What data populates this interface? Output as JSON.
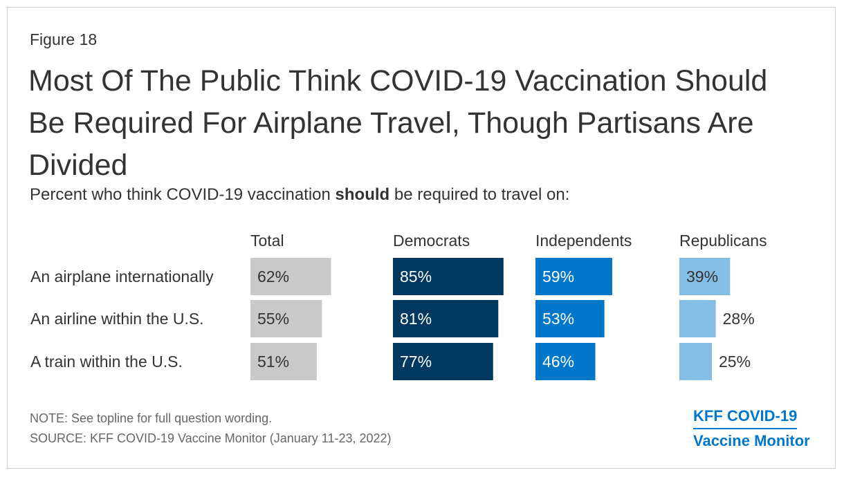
{
  "figure_label": "Figure 18",
  "title": "Most Of The Public Think COVID-19 Vaccination Should Be Required For Airplane Travel, Though Partisans Are Divided",
  "subtitle": {
    "prefix": "Percent who think COVID-19 vaccination ",
    "bold": "should",
    "suffix": " be required to travel on:"
  },
  "chart_data": {
    "type": "bar",
    "orientation": "horizontal",
    "categories": [
      "An airplane internationally",
      "An airline within the U.S.",
      "A train within the U.S."
    ],
    "series": [
      {
        "name": "Total",
        "values": [
          62,
          55,
          51
        ],
        "labels": [
          "62%",
          "55%",
          "51%"
        ],
        "color": "#c9c9c9",
        "label_color": "#333333"
      },
      {
        "name": "Democrats",
        "values": [
          85,
          81,
          77
        ],
        "labels": [
          "85%",
          "81%",
          "77%"
        ],
        "color": "#00385f",
        "label_color": "#ffffff"
      },
      {
        "name": "Independents",
        "values": [
          59,
          53,
          46
        ],
        "labels": [
          "59%",
          "53%",
          "46%"
        ],
        "color": "#0077c8",
        "label_color": "#ffffff"
      },
      {
        "name": "Republicans",
        "values": [
          39,
          28,
          25
        ],
        "labels": [
          "39%",
          "28%",
          "25%"
        ],
        "color": "#85bde5",
        "label_color": "#333333"
      }
    ],
    "value_unit": "%",
    "xlim": [
      0,
      100
    ],
    "grid": false
  },
  "notes": {
    "note": "NOTE: See topline for full question wording.",
    "source": "SOURCE: KFF COVID-19 Vaccine Monitor (January 11-23, 2022)"
  },
  "logo": {
    "line1": "KFF COVID-19",
    "line2": "Vaccine Monitor",
    "color": "#0077c8"
  }
}
